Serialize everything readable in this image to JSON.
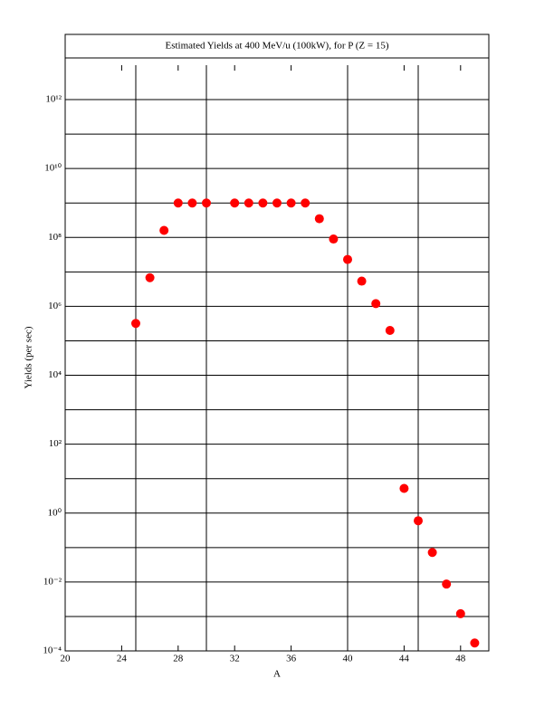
{
  "chart_data": {
    "type": "scatter",
    "title": "Estimated Yields at 400 MeV/u (100kW), for P (Z = 15)",
    "x_label": "A",
    "y_label": "Yields (per sec)",
    "log_y": true,
    "grid": true,
    "color": "#ff0000",
    "xlim": [
      20,
      50
    ],
    "xticks": [
      20,
      24,
      28,
      32,
      36,
      40,
      44,
      48
    ],
    "xgrid": [
      25,
      30,
      40,
      45
    ],
    "ylim": [
      0.0001,
      10000000000000.0
    ],
    "yticks": [
      {
        "value": 0.0001,
        "label": "10⁻⁴"
      },
      {
        "value": 0.01,
        "label": "10⁻²"
      },
      {
        "value": 1,
        "label": "10⁰"
      },
      {
        "value": 100,
        "label": "10²"
      },
      {
        "value": 10000,
        "label": "10⁴"
      },
      {
        "value": 1000000,
        "label": "10⁶"
      },
      {
        "value": 100000000,
        "label": "10⁸"
      },
      {
        "value": 10000000000,
        "label": "10¹⁰"
      },
      {
        "value": 1000000000000,
        "label": "10¹²"
      }
    ],
    "ygrid": [
      0.001,
      0.1,
      10,
      1000,
      100000,
      10000000,
      1000000000,
      100000000000
    ],
    "x": [
      25,
      26,
      27,
      28,
      29,
      30,
      32,
      33,
      34,
      35,
      36,
      37,
      38,
      39,
      40,
      41,
      42,
      43,
      44,
      45,
      46,
      47,
      48,
      49
    ],
    "values": [
      320000,
      6800000,
      160000000,
      1000000000,
      1000000000,
      1000000000,
      1000000000,
      1000000000,
      1000000000,
      1000000000,
      1000000000,
      1000000000,
      350000000,
      90000000,
      23000000,
      5400000,
      1200000,
      200000,
      5.2,
      0.6,
      0.072,
      0.0087,
      0.0012,
      0.00017
    ]
  }
}
